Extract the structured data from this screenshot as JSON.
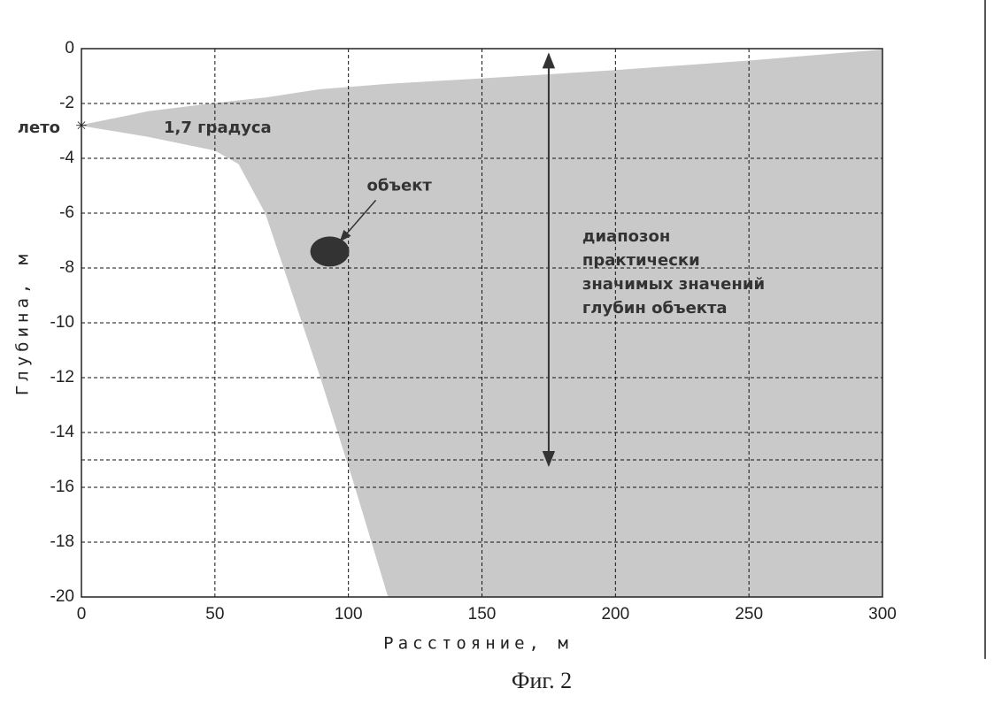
{
  "chart_data": {
    "type": "range-area",
    "caption": "Фиг. 2",
    "xlabel": "Расстояние, м",
    "ylabel": "Глубина, м",
    "xlim": [
      0,
      300
    ],
    "ylim": [
      -20,
      0
    ],
    "xticks": [
      0,
      50,
      100,
      150,
      200,
      250,
      300
    ],
    "yticks": [
      0,
      -2,
      -4,
      -6,
      -8,
      -10,
      -12,
      -14,
      -16,
      -18,
      -20
    ],
    "grid": true,
    "reference_line": -15,
    "color": "#c9c9c9",
    "x": [
      0,
      25,
      50,
      59,
      69,
      79,
      89,
      102,
      115,
      150,
      200,
      250,
      300
    ],
    "series": [
      {
        "values": [
          -2.8,
          -2.3,
          -2.0,
          -1.9,
          -1.8,
          -1.65,
          -1.5,
          -1.4,
          -1.3,
          -1.1,
          -0.8,
          -0.45,
          -0.05
        ]
      },
      {
        "values": [
          -2.8,
          -3.2,
          -3.7,
          -4.2,
          -6.0,
          -8.9,
          -11.8,
          -15.8,
          -20,
          -20,
          -20,
          -20,
          -20
        ]
      }
    ],
    "season": {
      "label": "лето",
      "x": 0,
      "y": -2.8
    },
    "angle_label": "1,7 градуса",
    "object": {
      "label": "объект",
      "x": 93,
      "y": -7.4
    },
    "range_arrow": {
      "x": 175,
      "from": -0.2,
      "to": -15.2,
      "label": [
        "диапозон",
        "практически",
        "значимых значений",
        "глубин объекта"
      ]
    }
  }
}
